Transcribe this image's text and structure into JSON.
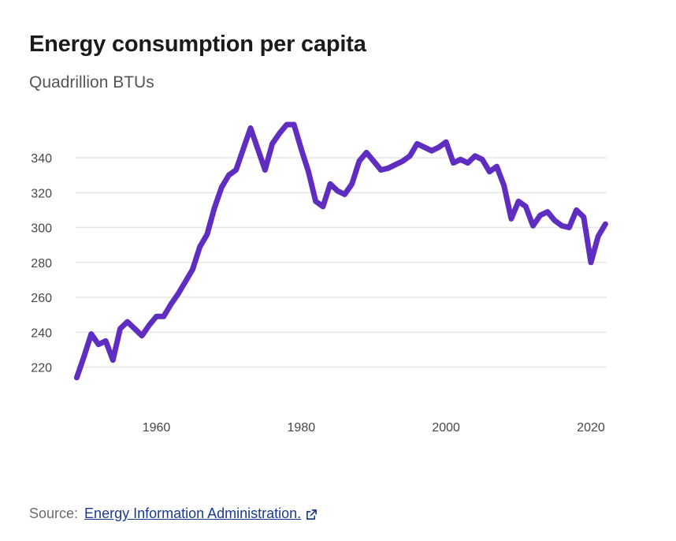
{
  "header": {
    "title": "Energy consumption per capita",
    "subtitle": "Quadrillion BTUs"
  },
  "footer": {
    "source_label": "Source:",
    "source_link_text": "Energy Information Administration.",
    "link_icon": "external-link-icon"
  },
  "colors": {
    "line": "#5f2ec0",
    "grid": "#e5e5e5",
    "link": "#1a3a8f"
  },
  "chart_data": {
    "type": "line",
    "title": "Energy consumption per capita",
    "subtitle": "Quadrillion BTUs",
    "xlabel": "",
    "ylabel": "Quadrillion BTUs",
    "xlim": [
      1949,
      2022
    ],
    "ylim": [
      200,
      360
    ],
    "x_ticks": [
      1960,
      1980,
      2000,
      2020
    ],
    "y_ticks": [
      220,
      240,
      260,
      280,
      300,
      320,
      340
    ],
    "grid": "horizontal",
    "legend": "none",
    "series": [
      {
        "name": "Energy consumption per capita",
        "x": [
          1949,
          1950,
          1951,
          1952,
          1953,
          1954,
          1955,
          1956,
          1957,
          1958,
          1959,
          1960,
          1961,
          1962,
          1963,
          1964,
          1965,
          1966,
          1967,
          1968,
          1969,
          1970,
          1971,
          1972,
          1973,
          1974,
          1975,
          1976,
          1977,
          1978,
          1979,
          1980,
          1981,
          1982,
          1983,
          1984,
          1985,
          1986,
          1987,
          1988,
          1989,
          1990,
          1991,
          1992,
          1993,
          1994,
          1995,
          1996,
          1997,
          1998,
          1999,
          2000,
          2001,
          2002,
          2003,
          2004,
          2005,
          2006,
          2007,
          2008,
          2009,
          2010,
          2011,
          2012,
          2013,
          2014,
          2015,
          2016,
          2017,
          2018,
          2019,
          2020,
          2021,
          2022
        ],
        "values": [
          214,
          226,
          239,
          233,
          235,
          224,
          242,
          246,
          242,
          238,
          244,
          249,
          249,
          256,
          262,
          269,
          276,
          289,
          296,
          311,
          323,
          330,
          333,
          345,
          357,
          345,
          333,
          348,
          354,
          359,
          359,
          345,
          332,
          315,
          312,
          325,
          321,
          319,
          325,
          338,
          343,
          338,
          333,
          334,
          336,
          338,
          341,
          348,
          346,
          344,
          346,
          349,
          337,
          339,
          337,
          341,
          339,
          332,
          335,
          324,
          305,
          315,
          312,
          301,
          307,
          309,
          304,
          301,
          300,
          310,
          306,
          280,
          295,
          302
        ]
      }
    ]
  }
}
